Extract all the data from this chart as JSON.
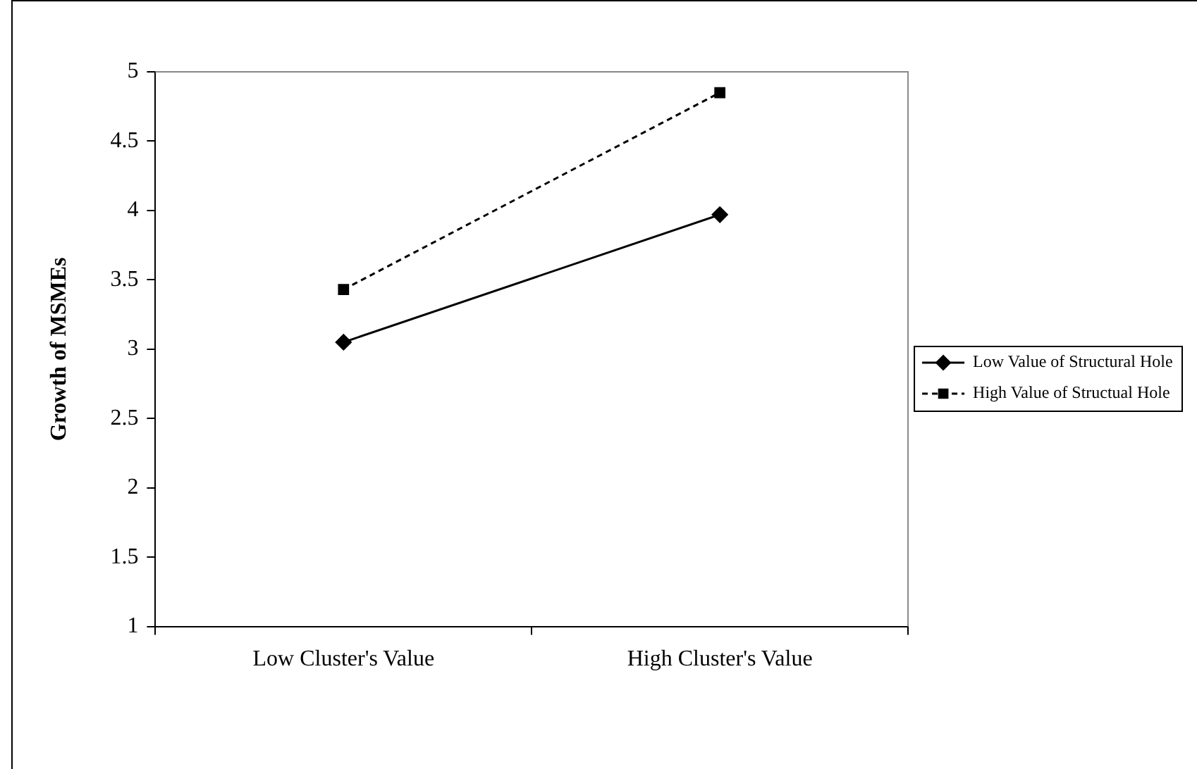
{
  "chart_data": {
    "type": "line",
    "ylabel": "Growth of MSMEs",
    "categories": [
      "Low Cluster's Value",
      "High Cluster's Value"
    ],
    "series": [
      {
        "name": "Low Value of Structural Hole",
        "color": "#000000",
        "values": [
          3.05,
          3.97
        ],
        "marker": "diamond",
        "line_style": "solid"
      },
      {
        "name": "High Value of Structual Hole",
        "color": "#000000",
        "values": [
          3.43,
          4.85
        ],
        "marker": "square",
        "line_style": "dashed"
      }
    ],
    "ylim": [
      1,
      5
    ],
    "yticks": [
      1,
      1.5,
      2,
      2.5,
      3,
      3.5,
      4,
      4.5,
      5
    ],
    "grid": false,
    "legend": "right"
  }
}
